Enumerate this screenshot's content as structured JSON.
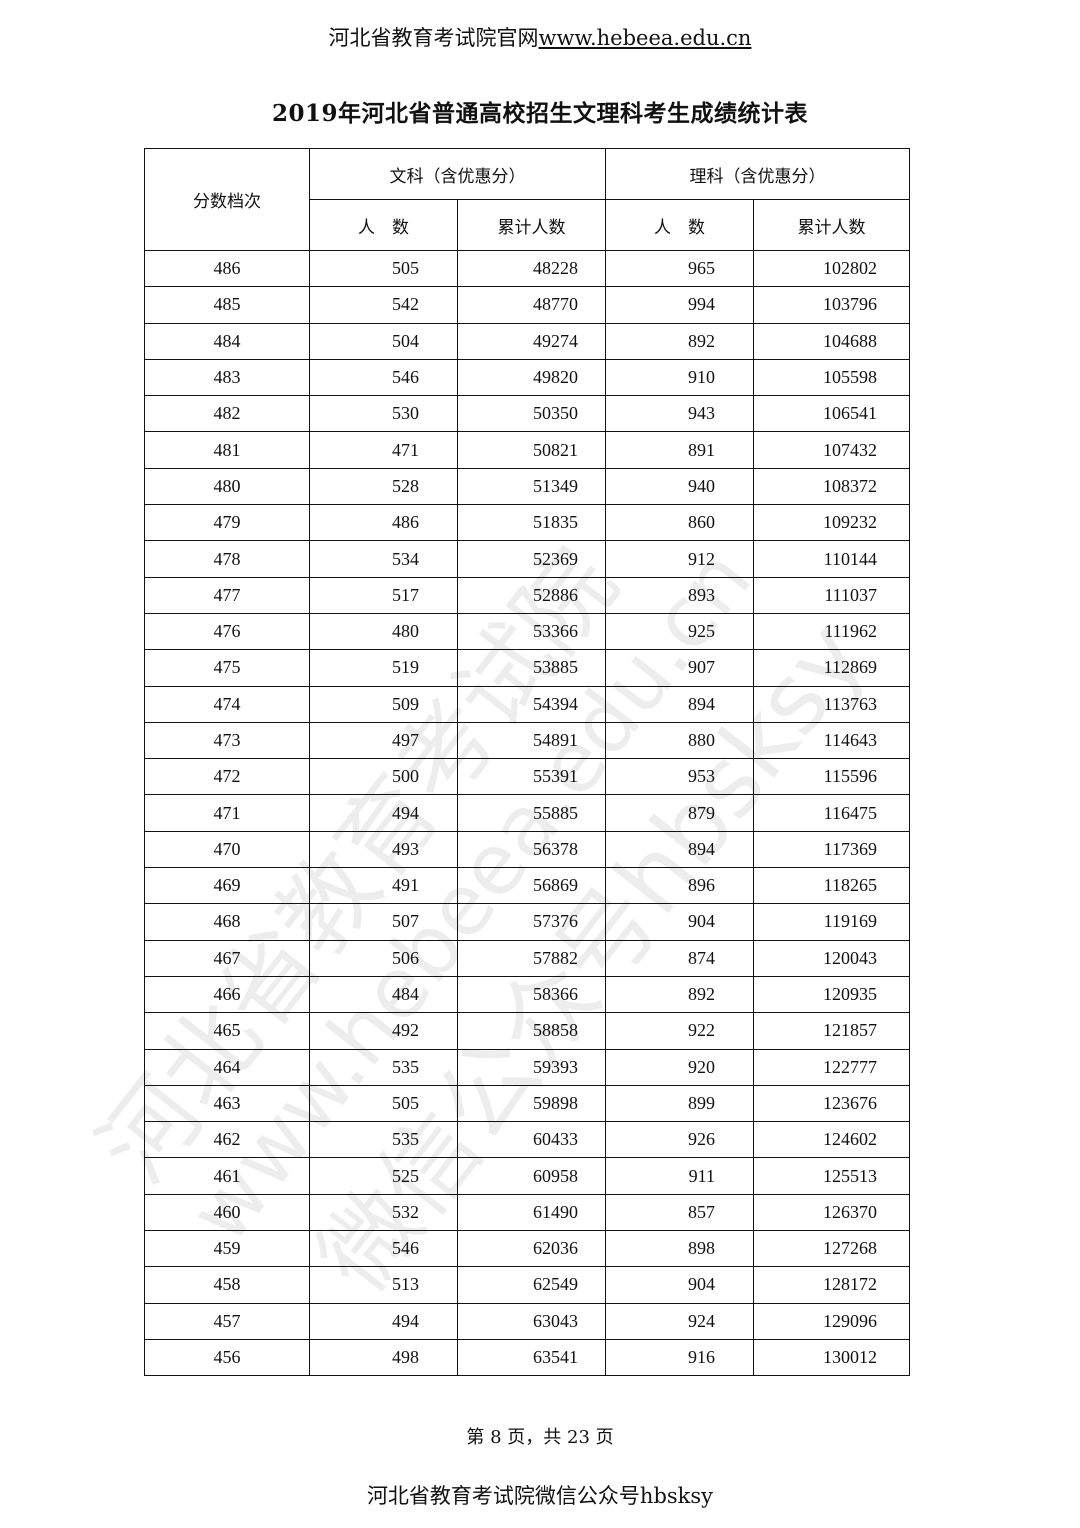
{
  "header": {
    "prefix": "河北省教育考试院官网",
    "url": "www.hebeea.edu.cn"
  },
  "title": "2019年河北省普通高校招生文理科考生成绩统计表",
  "table": {
    "score_header": "分数档次",
    "group_liberal": "文科（含优惠分）",
    "group_science": "理科（含优惠分）",
    "count_header": "人　数",
    "cumulative_header": "累计人数",
    "rows": [
      [
        "486",
        "505",
        "48228",
        "965",
        "102802"
      ],
      [
        "485",
        "542",
        "48770",
        "994",
        "103796"
      ],
      [
        "484",
        "504",
        "49274",
        "892",
        "104688"
      ],
      [
        "483",
        "546",
        "49820",
        "910",
        "105598"
      ],
      [
        "482",
        "530",
        "50350",
        "943",
        "106541"
      ],
      [
        "481",
        "471",
        "50821",
        "891",
        "107432"
      ],
      [
        "480",
        "528",
        "51349",
        "940",
        "108372"
      ],
      [
        "479",
        "486",
        "51835",
        "860",
        "109232"
      ],
      [
        "478",
        "534",
        "52369",
        "912",
        "110144"
      ],
      [
        "477",
        "517",
        "52886",
        "893",
        "111037"
      ],
      [
        "476",
        "480",
        "53366",
        "925",
        "111962"
      ],
      [
        "475",
        "519",
        "53885",
        "907",
        "112869"
      ],
      [
        "474",
        "509",
        "54394",
        "894",
        "113763"
      ],
      [
        "473",
        "497",
        "54891",
        "880",
        "114643"
      ],
      [
        "472",
        "500",
        "55391",
        "953",
        "115596"
      ],
      [
        "471",
        "494",
        "55885",
        "879",
        "116475"
      ],
      [
        "470",
        "493",
        "56378",
        "894",
        "117369"
      ],
      [
        "469",
        "491",
        "56869",
        "896",
        "118265"
      ],
      [
        "468",
        "507",
        "57376",
        "904",
        "119169"
      ],
      [
        "467",
        "506",
        "57882",
        "874",
        "120043"
      ],
      [
        "466",
        "484",
        "58366",
        "892",
        "120935"
      ],
      [
        "465",
        "492",
        "58858",
        "922",
        "121857"
      ],
      [
        "464",
        "535",
        "59393",
        "920",
        "122777"
      ],
      [
        "463",
        "505",
        "59898",
        "899",
        "123676"
      ],
      [
        "462",
        "535",
        "60433",
        "926",
        "124602"
      ],
      [
        "461",
        "525",
        "60958",
        "911",
        "125513"
      ],
      [
        "460",
        "532",
        "61490",
        "857",
        "126370"
      ],
      [
        "459",
        "546",
        "62036",
        "898",
        "127268"
      ],
      [
        "458",
        "513",
        "62549",
        "904",
        "128172"
      ],
      [
        "457",
        "494",
        "63043",
        "924",
        "129096"
      ],
      [
        "456",
        "498",
        "63541",
        "916",
        "130012"
      ]
    ]
  },
  "footer": {
    "page": "第 8 页，共 23 页",
    "wechat": "河北省教育考试院微信公众号hbsksy"
  },
  "watermark": {
    "line1": "河北省教育考试院",
    "line2": "www.hebeea.edu.cn",
    "line3": "微信公众号hbsksy"
  }
}
